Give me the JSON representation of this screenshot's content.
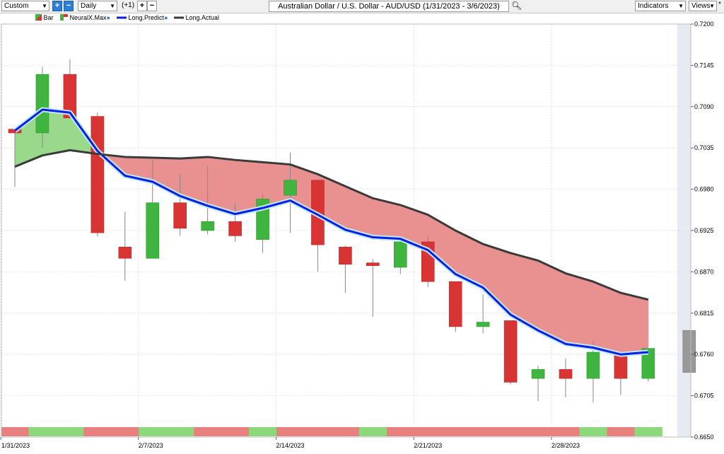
{
  "toolbar": {
    "range_select": "Custom",
    "interval_select": "Daily",
    "zoom_in_icon": "plus-icon",
    "zoom_out_icon": "minus-icon",
    "offset_label": "(+1)",
    "add_icon": "plus-icon",
    "remove_icon": "minus-icon",
    "title": "Australian Dollar / U.S. Dollar - AUD/USD (1/31/2023 - 3/6/2023)",
    "search_icon": "search-icon",
    "indicators_label": "Indicators",
    "views_label": "Views",
    "pin_icon": "asterisk-icon"
  },
  "legend": [
    {
      "label": "Bar",
      "icon": "candle-icon"
    },
    {
      "label": "NeuralX.Max",
      "icon": "neuralx-icon"
    },
    {
      "label": "Long.Predict",
      "color": "#0a1fe0"
    },
    {
      "label": "Long.Actual",
      "color": "#3a3a3a"
    }
  ],
  "chart_data": {
    "type": "candlestick",
    "ylim": [
      0.665,
      0.72
    ],
    "y_ticks": [
      "0.7200",
      "0.7145",
      "0.7090",
      "0.7035",
      "0.6980",
      "0.6925",
      "0.6870",
      "0.6815",
      "0.6760",
      "0.6705",
      "0.6650"
    ],
    "x_tick_labels": [
      {
        "index": 0,
        "label": "1/31/2023"
      },
      {
        "index": 5,
        "label": "2/7/2023"
      },
      {
        "index": 10,
        "label": "2/14/2023"
      },
      {
        "index": 15,
        "label": "2/21/2023"
      },
      {
        "index": 20,
        "label": "2/28/2023"
      }
    ],
    "bars": [
      {
        "open": 0.706,
        "high": 0.7062,
        "low": 0.6983,
        "close": 0.7055
      },
      {
        "open": 0.7055,
        "high": 0.7143,
        "low": 0.7035,
        "close": 0.7133
      },
      {
        "open": 0.7133,
        "high": 0.7153,
        "low": 0.7075,
        "close": 0.7075
      },
      {
        "open": 0.7077,
        "high": 0.7082,
        "low": 0.6917,
        "close": 0.6922
      },
      {
        "open": 0.6903,
        "high": 0.695,
        "low": 0.6858,
        "close": 0.6888
      },
      {
        "open": 0.6888,
        "high": 0.7019,
        "low": 0.6888,
        "close": 0.6962
      },
      {
        "open": 0.6962,
        "high": 0.7,
        "low": 0.6918,
        "close": 0.6928
      },
      {
        "open": 0.6925,
        "high": 0.7011,
        "low": 0.692,
        "close": 0.6937
      },
      {
        "open": 0.6937,
        "high": 0.6961,
        "low": 0.691,
        "close": 0.6918
      },
      {
        "open": 0.6913,
        "high": 0.6973,
        "low": 0.6895,
        "close": 0.6967
      },
      {
        "open": 0.6972,
        "high": 0.7029,
        "low": 0.6922,
        "close": 0.6992
      },
      {
        "open": 0.6992,
        "high": 0.6993,
        "low": 0.687,
        "close": 0.6906
      },
      {
        "open": 0.6903,
        "high": 0.6905,
        "low": 0.6842,
        "close": 0.688
      },
      {
        "open": 0.6882,
        "high": 0.6887,
        "low": 0.681,
        "close": 0.688
      },
      {
        "open": 0.6876,
        "high": 0.6917,
        "low": 0.6867,
        "close": 0.691
      },
      {
        "open": 0.691,
        "high": 0.6917,
        "low": 0.685,
        "close": 0.6857
      },
      {
        "open": 0.6857,
        "high": 0.6857,
        "low": 0.679,
        "close": 0.6797
      },
      {
        "open": 0.6797,
        "high": 0.684,
        "low": 0.6788,
        "close": 0.6803
      },
      {
        "open": 0.6805,
        "high": 0.6805,
        "low": 0.672,
        "close": 0.6723
      },
      {
        "open": 0.6728,
        "high": 0.6745,
        "low": 0.6698,
        "close": 0.674
      },
      {
        "open": 0.674,
        "high": 0.6755,
        "low": 0.6703,
        "close": 0.6728
      },
      {
        "open": 0.6728,
        "high": 0.6778,
        "low": 0.6696,
        "close": 0.6763
      },
      {
        "open": 0.6763,
        "high": 0.6763,
        "low": 0.6706,
        "close": 0.6728
      },
      {
        "open": 0.6728,
        "high": 0.6768,
        "low": 0.6724,
        "close": 0.6768
      }
    ],
    "forecast_bar": {
      "open": 0.6792,
      "close": 0.6736
    },
    "long_predict": [
      0.7058,
      0.7086,
      0.7082,
      0.7031,
      0.6998,
      0.699,
      0.6971,
      0.6958,
      0.6947,
      0.6955,
      0.6965,
      0.6946,
      0.6926,
      0.6916,
      0.6914,
      0.6899,
      0.6867,
      0.6849,
      0.6813,
      0.6792,
      0.6774,
      0.6769,
      0.676,
      0.6763
    ],
    "long_actual": [
      0.701,
      0.7025,
      0.7032,
      0.7027,
      0.7023,
      0.7022,
      0.7021,
      0.7023,
      0.7019,
      0.7016,
      0.7013,
      0.7,
      0.6984,
      0.6968,
      0.6959,
      0.6946,
      0.6925,
      0.6907,
      0.6895,
      0.6885,
      0.6868,
      0.6857,
      0.6842,
      0.6833
    ],
    "neuralx_bar": [
      "red",
      "green",
      "green",
      "red",
      "red",
      "green",
      "green",
      "red",
      "red",
      "green",
      "red",
      "red",
      "red",
      "green",
      "red",
      "red",
      "red",
      "red",
      "red",
      "red",
      "red",
      "green",
      "red",
      "green"
    ],
    "colors": {
      "up": "#3fb53f",
      "down": "#d93434",
      "forecast": "#999999",
      "predict": "#0a1fe0",
      "actual": "#3a3a3a",
      "fill_up": "#9ad88c",
      "fill_down": "#e99090",
      "nx_green": "#8ed87c",
      "nx_red": "#e88080",
      "forecast_zone": "#e6ebf3"
    }
  }
}
